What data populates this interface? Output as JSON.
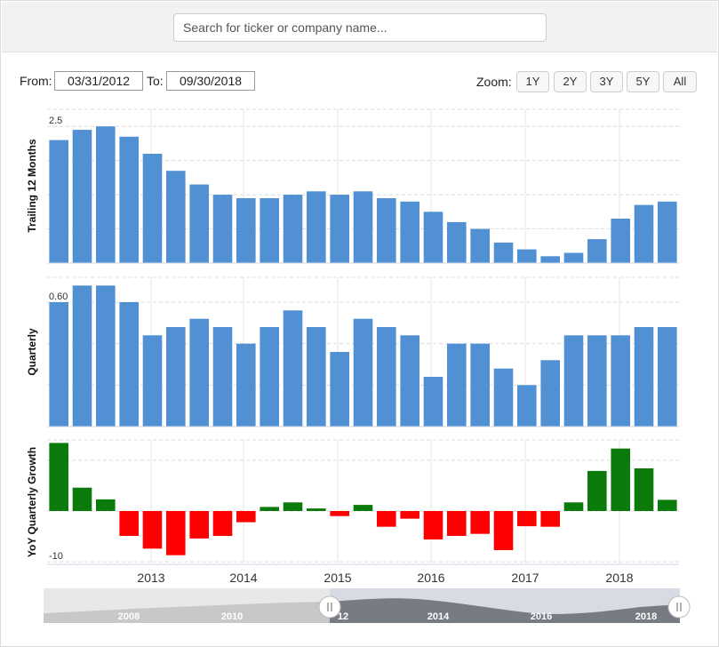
{
  "search": {
    "placeholder": "Search for ticker or company name..."
  },
  "range": {
    "from_label": "From:",
    "from_value": "03/31/2012",
    "to_label": "To:",
    "to_value": "09/30/2018"
  },
  "zoom": {
    "label": "Zoom:",
    "buttons": [
      "1Y",
      "2Y",
      "3Y",
      "5Y",
      "All"
    ]
  },
  "colors": {
    "bar_blue": "#5090d3",
    "positive": "#0a7a0a",
    "negative": "#ff0000",
    "navigator_fill": "#7a7a7a"
  },
  "chart_data": [
    {
      "type": "bar",
      "ylabel": "Trailing 12 Months",
      "ylim": [
        2.1,
        2.55
      ],
      "yticks": [
        "2.1",
        "2.2",
        "2.3",
        "2.4",
        "2.5"
      ],
      "categories": [
        "2012-Q1",
        "2012-Q2",
        "2012-Q3",
        "2012-Q4",
        "2013-Q1",
        "2013-Q2",
        "2013-Q3",
        "2013-Q4",
        "2014-Q1",
        "2014-Q2",
        "2014-Q3",
        "2014-Q4",
        "2015-Q1",
        "2015-Q2",
        "2015-Q3",
        "2015-Q4",
        "2016-Q1",
        "2016-Q2",
        "2016-Q3",
        "2016-Q4",
        "2017-Q1",
        "2017-Q2",
        "2017-Q3",
        "2017-Q4",
        "2018-Q1",
        "2018-Q2",
        "2018-Q3"
      ],
      "values": [
        2.46,
        2.49,
        2.5,
        2.47,
        2.42,
        2.37,
        2.33,
        2.3,
        2.29,
        2.29,
        2.3,
        2.31,
        2.3,
        2.31,
        2.29,
        2.28,
        2.25,
        2.22,
        2.2,
        2.16,
        2.14,
        2.12,
        2.13,
        2.17,
        2.23,
        2.27,
        2.28
      ]
    },
    {
      "type": "bar",
      "ylabel": "Quarterly",
      "ylim": [
        0.45,
        0.63
      ],
      "yticks": [
        "0.45",
        "0.50",
        "0.55",
        "0.60"
      ],
      "categories": [
        "2012-Q1",
        "2012-Q2",
        "2012-Q3",
        "2012-Q4",
        "2013-Q1",
        "2013-Q2",
        "2013-Q3",
        "2013-Q4",
        "2014-Q1",
        "2014-Q2",
        "2014-Q3",
        "2014-Q4",
        "2015-Q1",
        "2015-Q2",
        "2015-Q3",
        "2015-Q4",
        "2016-Q1",
        "2016-Q2",
        "2016-Q3",
        "2016-Q4",
        "2017-Q1",
        "2017-Q2",
        "2017-Q3",
        "2017-Q4",
        "2018-Q1",
        "2018-Q2",
        "2018-Q3"
      ],
      "values": [
        0.6,
        0.62,
        0.62,
        0.6,
        0.56,
        0.57,
        0.58,
        0.57,
        0.55,
        0.57,
        0.59,
        0.57,
        0.54,
        0.58,
        0.57,
        0.56,
        0.51,
        0.55,
        0.55,
        0.52,
        0.5,
        0.53,
        0.56,
        0.56,
        0.56,
        0.57,
        0.57
      ]
    },
    {
      "type": "bar",
      "ylabel": "YoY Quarterly Growth",
      "ylim": [
        -10.5,
        14
      ],
      "yticks": [
        "-10",
        "0",
        "10"
      ],
      "categories": [
        "2012-Q1",
        "2012-Q2",
        "2012-Q3",
        "2012-Q4",
        "2013-Q1",
        "2013-Q2",
        "2013-Q3",
        "2013-Q4",
        "2014-Q1",
        "2014-Q2",
        "2014-Q3",
        "2014-Q4",
        "2015-Q1",
        "2015-Q2",
        "2015-Q3",
        "2015-Q4",
        "2016-Q1",
        "2016-Q2",
        "2016-Q3",
        "2016-Q4",
        "2017-Q1",
        "2017-Q2",
        "2017-Q3",
        "2017-Q4",
        "2018-Q1",
        "2018-Q2",
        "2018-Q3"
      ],
      "values": [
        13.4,
        4.6,
        2.3,
        -4.9,
        -7.4,
        -8.7,
        -5.4,
        -4.9,
        -2.2,
        0.8,
        1.7,
        0.5,
        -1.0,
        1.2,
        -3.1,
        -1.5,
        -5.6,
        -4.9,
        -4.5,
        -7.7,
        -3.0,
        -3.1,
        1.7,
        7.9,
        12.3,
        8.4,
        2.2
      ]
    }
  ],
  "x_axis": {
    "labels": [
      "2013",
      "2014",
      "2015",
      "2016",
      "2017",
      "2018"
    ]
  },
  "navigator": {
    "labels": [
      "2008",
      "2010",
      "12",
      "2014",
      "2016",
      "2018"
    ]
  }
}
